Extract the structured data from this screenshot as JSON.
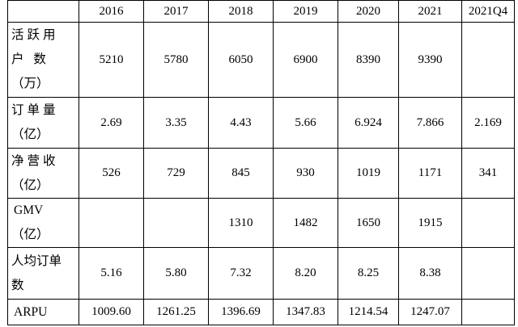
{
  "header": [
    "",
    "2016",
    "2017",
    "2018",
    "2019",
    "2020",
    "2021",
    "2021Q4"
  ],
  "rows": [
    {
      "label_lines": [
        "活跃用",
        "户  数",
        "（万）"
      ],
      "values": [
        "5210",
        "5780",
        "6050",
        "6900",
        "8390",
        "9390",
        ""
      ]
    },
    {
      "label_lines": [
        "订单量",
        "（亿）"
      ],
      "values": [
        "2.69",
        "3.35",
        "4.43",
        "5.66",
        "6.924",
        "7.866",
        "2.169"
      ]
    },
    {
      "label_lines": [
        "净营收",
        "（亿）"
      ],
      "values": [
        "526",
        "729",
        "845",
        "930",
        "1019",
        "1171",
        "341"
      ]
    },
    {
      "label_lines": [
        "GMV",
        "（亿）"
      ],
      "values": [
        "",
        "",
        "1310",
        "1482",
        "1650",
        "1915",
        ""
      ]
    },
    {
      "label_lines": [
        "人均订单",
        "数"
      ],
      "values": [
        "5.16",
        "5.80",
        "7.32",
        "8.20",
        "8.25",
        "8.38",
        ""
      ]
    },
    {
      "label_lines": [
        "ARPU"
      ],
      "values": [
        "1009.60",
        "1261.25",
        "1396.69",
        "1347.83",
        "1214.54",
        "1247.07",
        ""
      ]
    }
  ]
}
